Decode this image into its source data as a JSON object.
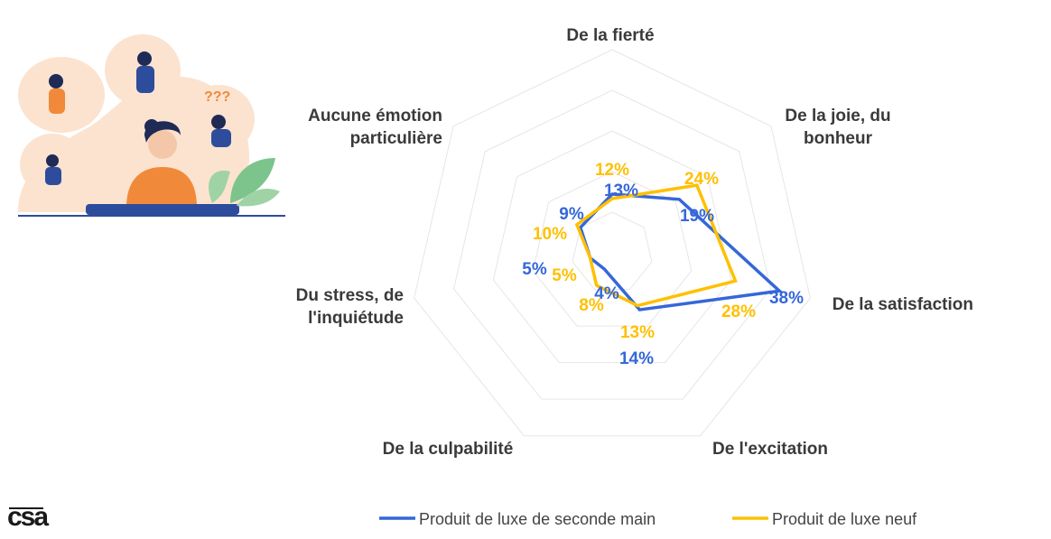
{
  "chart_data": {
    "type": "radar",
    "categories": [
      "De la fierté",
      "De la joie, du bonheur",
      "De la satisfaction",
      "De l'excitation",
      "De la culpabilité",
      "Du stress, de l'inquiétude",
      "Aucune émotion particulière"
    ],
    "series": [
      {
        "name": "Produit de luxe de seconde main",
        "color": "#3567d8",
        "values": [
          13,
          19,
          38,
          14,
          4,
          5,
          9
        ],
        "labels": [
          "13%",
          "19%",
          "38%",
          "14%",
          "4%",
          "5%",
          "9%"
        ]
      },
      {
        "name": "Produit de luxe neuf",
        "color": "#ffc000",
        "values": [
          12,
          24,
          28,
          13,
          8,
          5,
          10
        ],
        "labels": [
          "12%",
          "24%",
          "28%",
          "13%",
          "8%",
          "5%",
          "10%"
        ]
      }
    ],
    "grid": true,
    "legend": "bottom"
  },
  "logo": {
    "text": "csa"
  },
  "illustration": {
    "icon": "woman-emotions-illustration",
    "glyph": "???"
  }
}
